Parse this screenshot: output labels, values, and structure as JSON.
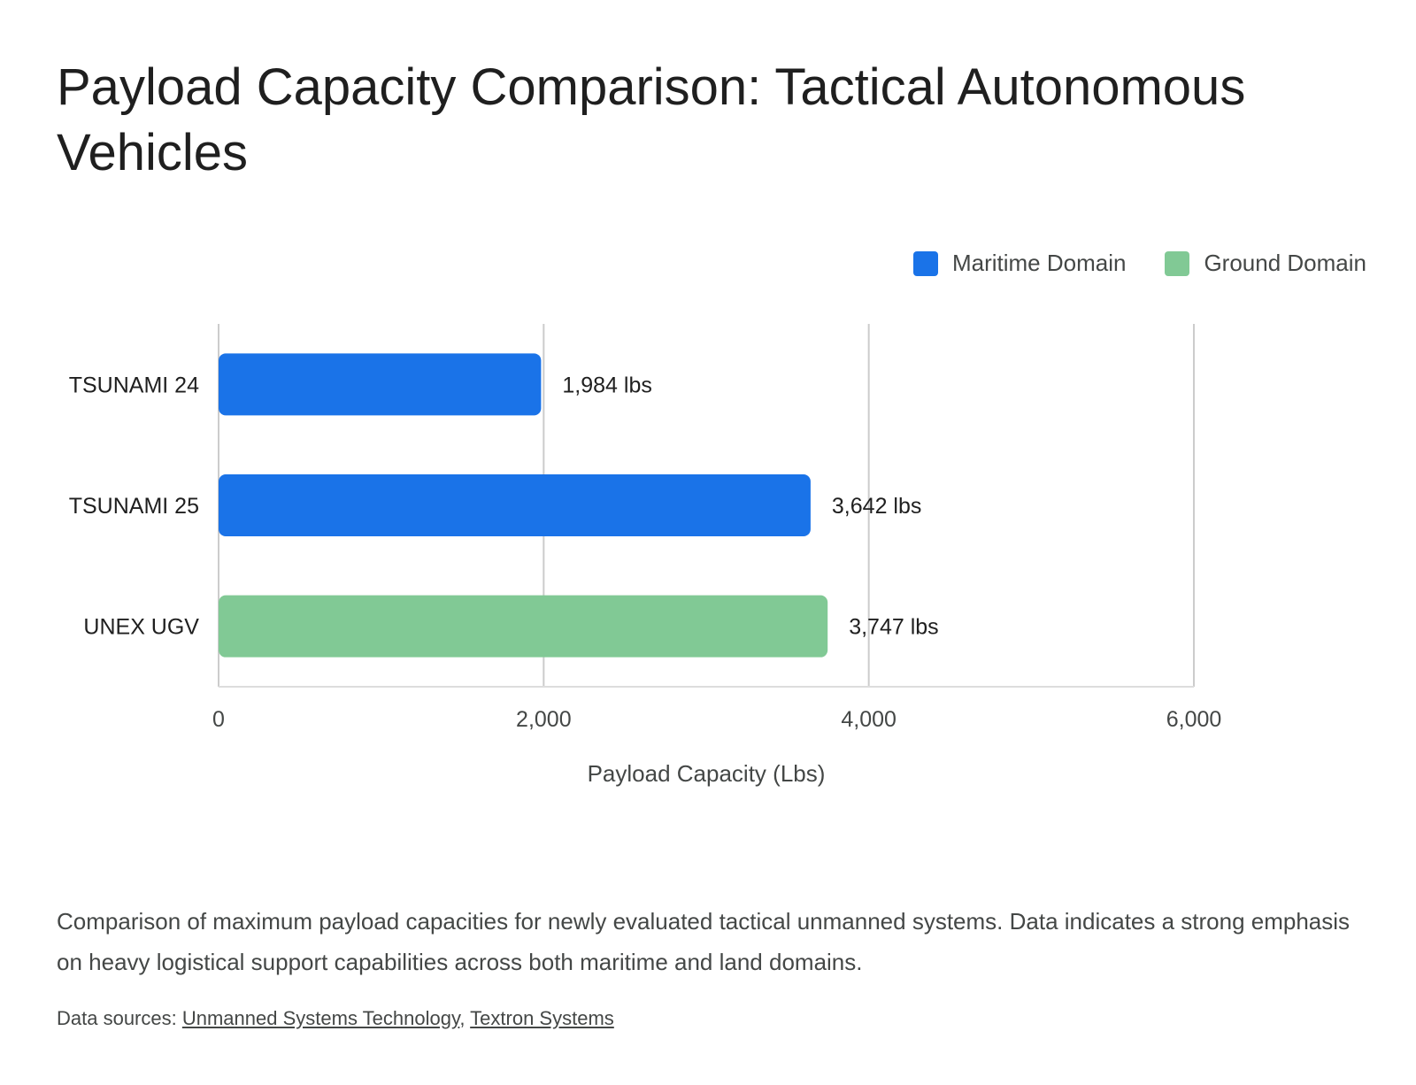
{
  "title": "Payload Capacity Comparison: Tactical Autonomous Vehicles",
  "legend": [
    {
      "label": "Maritime Domain",
      "color": "#1a73e8"
    },
    {
      "label": "Ground Domain",
      "color": "#81c995"
    }
  ],
  "chart_data": {
    "type": "bar",
    "orientation": "horizontal",
    "categories": [
      "TSUNAMI 24",
      "TSUNAMI 25",
      "UNEX UGV"
    ],
    "values": [
      1984,
      3642,
      3747
    ],
    "value_labels": [
      "1,984 lbs",
      "3,642 lbs",
      "3,747 lbs"
    ],
    "domains": [
      "Maritime Domain",
      "Maritime Domain",
      "Ground Domain"
    ],
    "bar_colors": [
      "#1a73e8",
      "#1a73e8",
      "#81c995"
    ],
    "xlabel": "Payload Capacity (Lbs)",
    "ylabel": "",
    "xlim": [
      0,
      6000
    ],
    "xticks": [
      0,
      2000,
      4000,
      6000
    ],
    "xtick_labels": [
      "0",
      "2,000",
      "4,000",
      "6,000"
    ],
    "grid": true,
    "legend_position": "top-right"
  },
  "caption": "Comparison of maximum payload capacities for newly evaluated tactical unmanned systems. Data indicates a strong emphasis on heavy logistical support capabilities across both maritime and land domains.",
  "sources": {
    "prefix": "Data sources:",
    "separator": ",",
    "links": [
      "Unmanned Systems Technology",
      "Textron Systems"
    ]
  }
}
